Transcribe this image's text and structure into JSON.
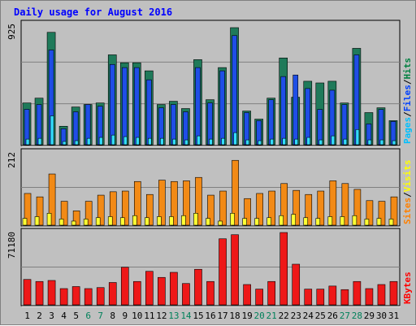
{
  "chart_data": {
    "type": "bar",
    "title": "Daily usage for August 2016",
    "categories": [
      "1",
      "2",
      "3",
      "4",
      "5",
      "6",
      "7",
      "8",
      "9",
      "10",
      "11",
      "12",
      "13",
      "14",
      "15",
      "16",
      "17",
      "18",
      "19",
      "20",
      "21",
      "22",
      "23",
      "24",
      "25",
      "26",
      "27",
      "28",
      "29",
      "30",
      "31"
    ],
    "weekend_days": [
      6,
      7,
      13,
      14,
      20,
      21,
      27,
      28
    ],
    "panels": [
      {
        "scale_label": "925",
        "ymax": 925,
        "legend": [
          {
            "label": "Pages",
            "color": "#00c0ff"
          },
          {
            "label": "Files",
            "color": "#0040ff"
          },
          {
            "label": "Hits",
            "color": "#008040"
          }
        ],
        "series": [
          {
            "name": "Hits",
            "color": "#1f7a5a",
            "values": [
              321,
              358,
              864,
              142,
              290,
              309,
              321,
              691,
              630,
              630,
              568,
              309,
              334,
              278,
              654,
              346,
              593,
              900,
              259,
              197,
              358,
              667,
              365,
              488,
              475,
              488,
              321,
              741,
              247,
              284,
              185
            ]
          },
          {
            "name": "Files",
            "color": "#1f4ee6",
            "values": [
              272,
              309,
              728,
              123,
              253,
              309,
              296,
              617,
              593,
              593,
              499,
              284,
              309,
              253,
              593,
              321,
              568,
              839,
              247,
              185,
              346,
              524,
              536,
              432,
              271,
              419,
              309,
              691,
              160,
              271,
              179
            ]
          },
          {
            "name": "Pages",
            "color": "#33ddff",
            "values": [
              43,
              49,
              222,
              25,
              31,
              49,
              56,
              74,
              62,
              56,
              49,
              49,
              43,
              37,
              68,
              43,
              49,
              93,
              37,
              31,
              43,
              49,
              43,
              56,
              37,
              68,
              43,
              117,
              37,
              37,
              31
            ]
          }
        ]
      },
      {
        "scale_label": "212",
        "ymax": 212,
        "legend": [
          {
            "label": "Sites",
            "color": "#ff8000"
          },
          {
            "label": "Visits",
            "color": "#ffff00"
          }
        ],
        "series": [
          {
            "name": "Visits",
            "color": "#f28a16",
            "values": [
              93,
              83,
              150,
              70,
              42,
              70,
              88,
              98,
              100,
              128,
              90,
              132,
              128,
              130,
              140,
              88,
              100,
              190,
              78,
              93,
              100,
              122,
              102,
              90,
              100,
              130,
              122,
              105,
              72,
              70,
              83
            ]
          },
          {
            "name": "Sites",
            "color": "#ffff33",
            "values": [
              20,
              25,
              35,
              18,
              12,
              18,
              22,
              25,
              22,
              28,
              22,
              25,
              25,
              28,
              35,
              20,
              12,
              35,
              20,
              20,
              22,
              28,
              32,
              22,
              20,
              25,
              25,
              28,
              18,
              20,
              18
            ]
          }
        ]
      },
      {
        "scale_label": "71180",
        "ymax": 71180,
        "legend": [
          {
            "label": "KBytes",
            "color": "#ff0000"
          }
        ],
        "series": [
          {
            "name": "KBytes",
            "color": "#ee1818",
            "values": [
              25000,
              23000,
              24000,
              16000,
              18000,
              16000,
              17000,
              22000,
              37000,
              23000,
              33000,
              27000,
              32000,
              21000,
              35000,
              23000,
              65000,
              69000,
              20000,
              15500,
              23000,
              71180,
              40000,
              15500,
              15500,
              18500,
              15000,
              23000,
              16000,
              20000,
              23000
            ]
          }
        ]
      }
    ]
  }
}
